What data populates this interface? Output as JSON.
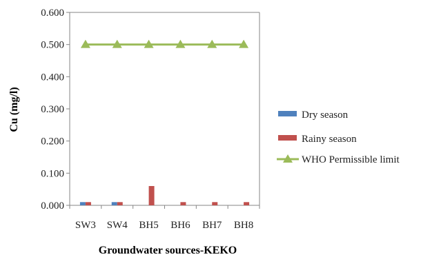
{
  "chart_data": {
    "type": "bar",
    "categories": [
      "SW3",
      "SW4",
      "BH5",
      "BH6",
      "BH7",
      "BH8"
    ],
    "series": [
      {
        "name": "Dry season",
        "kind": "bar",
        "color": "#4f81bd",
        "values": [
          0.01,
          0.01,
          0,
          0,
          0,
          0
        ]
      },
      {
        "name": "Rainy season",
        "kind": "bar",
        "color": "#c0504d",
        "values": [
          0.01,
          0.01,
          0.06,
          0.01,
          0.01,
          0.01
        ]
      },
      {
        "name": "WHO Permissible limit",
        "kind": "line",
        "marker": "triangle",
        "color": "#9bbb59",
        "values": [
          0.5,
          0.5,
          0.5,
          0.5,
          0.5,
          0.5
        ]
      }
    ],
    "xlabel": "Groundwater sources-KEKO",
    "ylabel": "Cu (mg/l)",
    "ylim": [
      0,
      0.6
    ],
    "yticks": [
      "0.000",
      "0.100",
      "0.200",
      "0.300",
      "0.400",
      "0.500",
      "0.600"
    ],
    "grid": false,
    "legend": "right"
  }
}
